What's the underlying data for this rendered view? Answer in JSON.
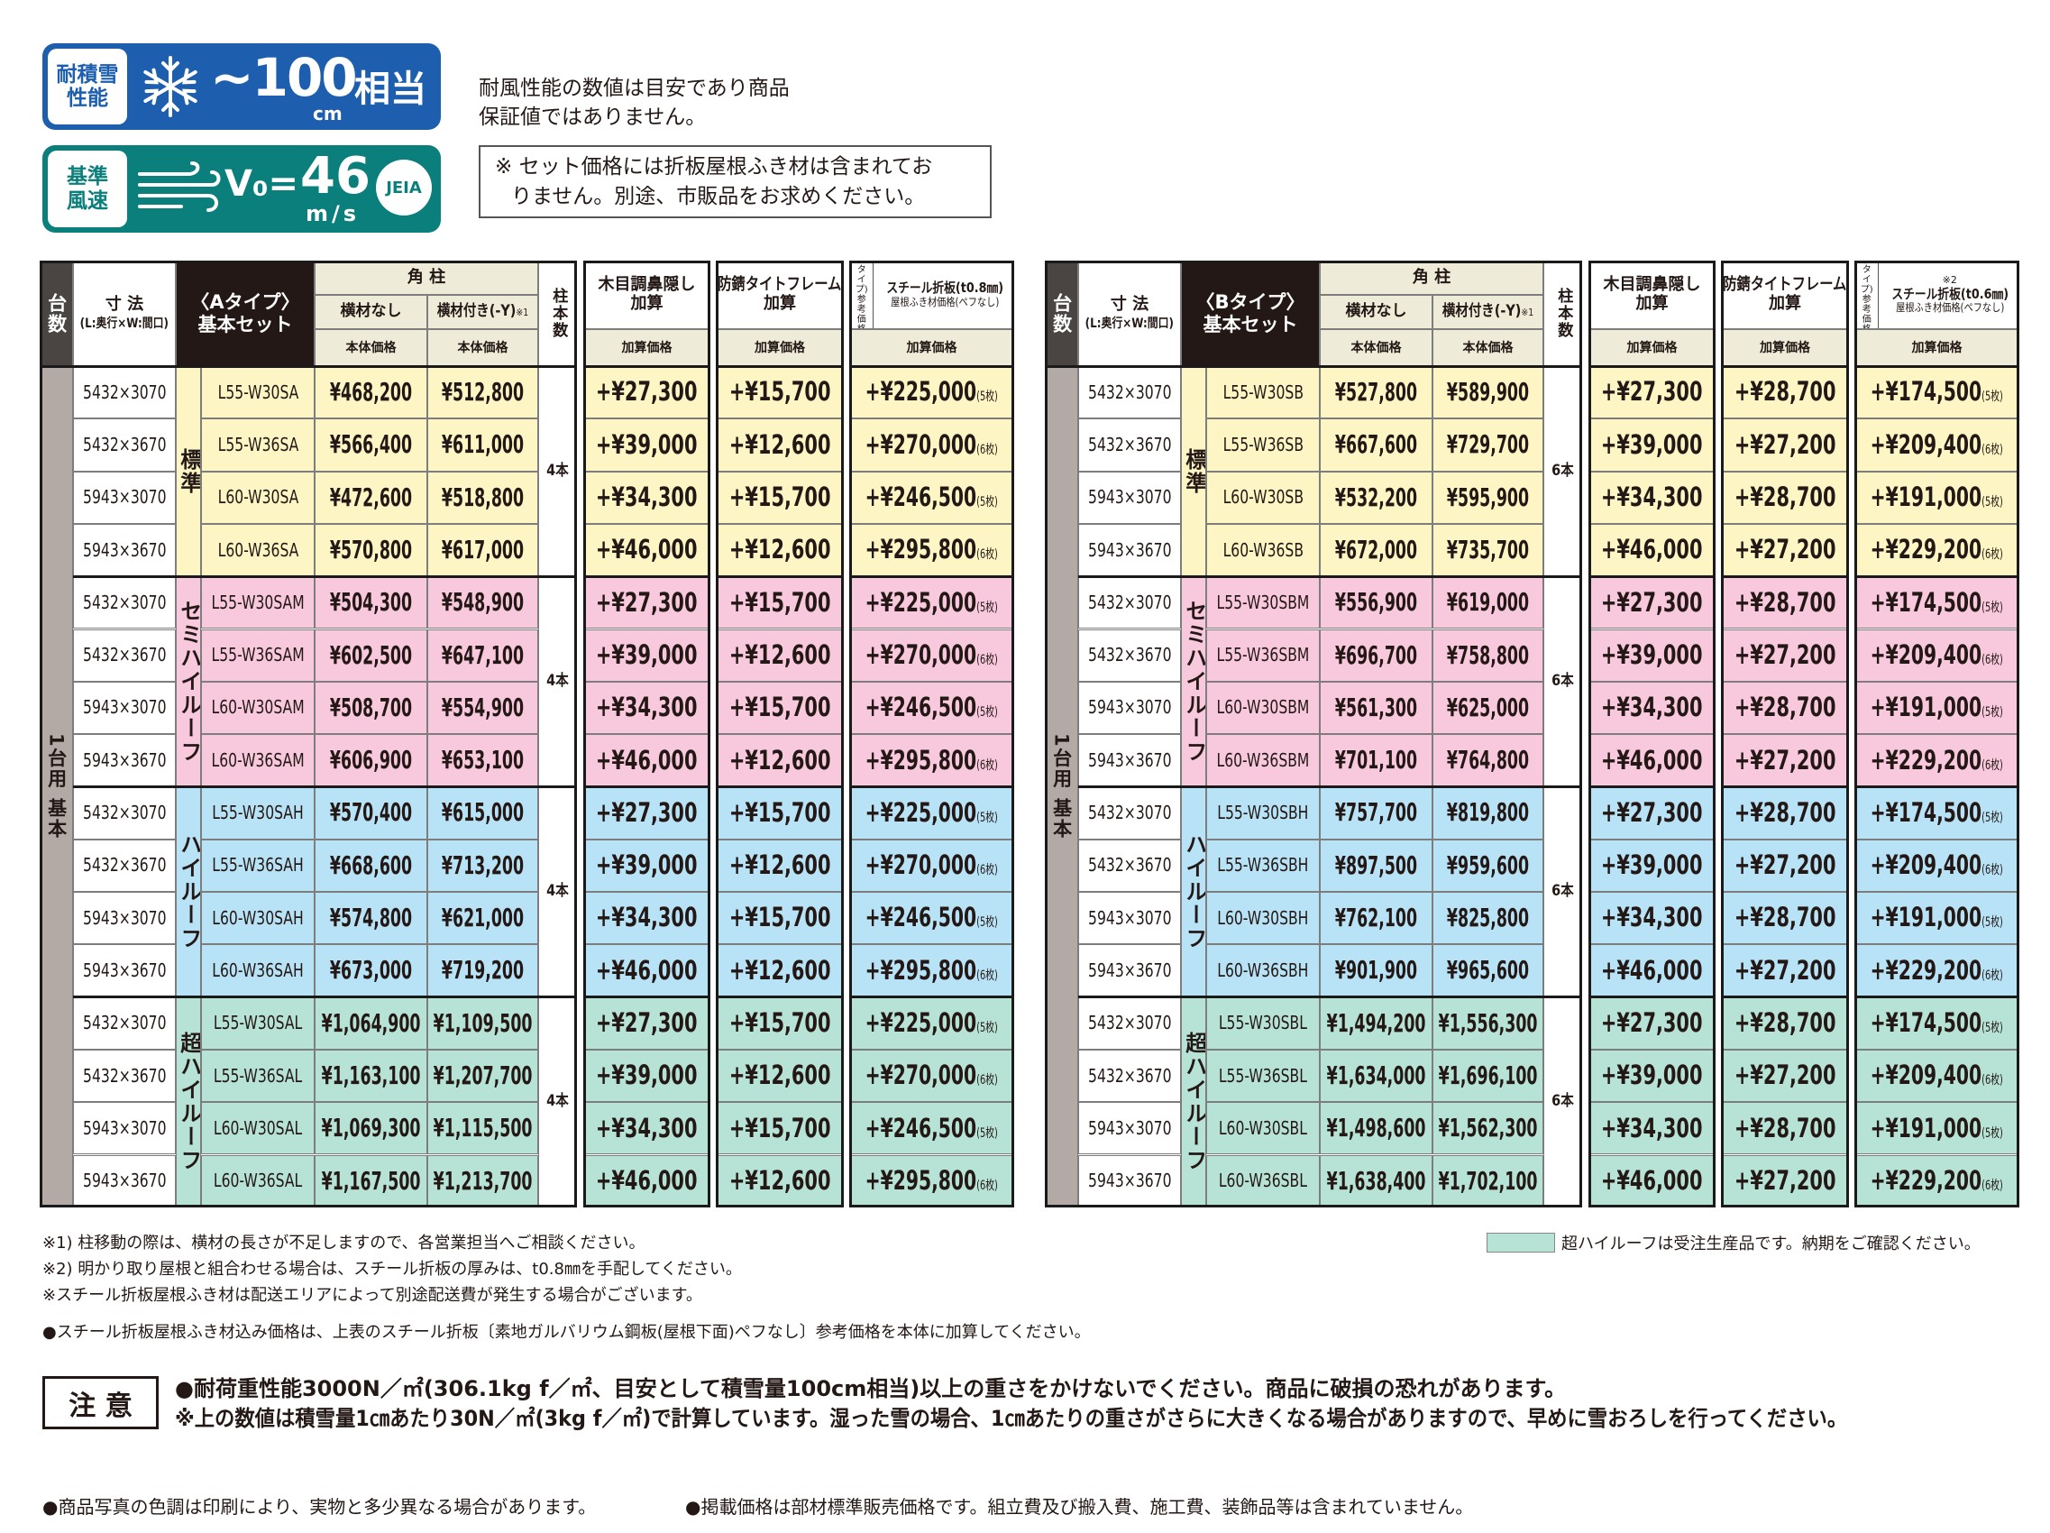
{
  "badges": {
    "snow": {
      "label": "耐積雪性能",
      "value": "~100",
      "unit": "cm",
      "suffix": "相当"
    },
    "wind": {
      "label": "基準風速",
      "prefix": "V₀=",
      "value": "46",
      "unit": "m/s",
      "mark": "JEIA"
    }
  },
  "notes_top": [
    "耐風性能の数値は目安であり商品",
    "保証値ではありません。"
  ],
  "notice_box": [
    "※ セット価格には折板屋根ふき材は含まれてお",
    "りません。別途、市販品をお求めください。"
  ],
  "tables": [
    {
      "header": {
        "count": "台数",
        "size": [
          "寸 法",
          "(L:奥行×W:間口)"
        ],
        "set": [
          "〈Aタイプ〉",
          "基本セット"
        ],
        "pillar": "角 柱",
        "no_beam": "横材なし",
        "beam": "横材付き(-Y)",
        "beam_note": "※1",
        "body_price": [
          "本体価格",
          "本体価格"
        ],
        "pillar_count": "柱本数",
        "wood": [
          "木目調鼻隠し",
          "加算"
        ],
        "frame": [
          "防錆タイトフレーム",
          "加算"
        ],
        "steel_type": [
          "(Aタイプ)",
          "参考価格"
        ],
        "steel": [
          "スチール折板(t0.8㎜)",
          "屋根ふき材価格(ペフなし)"
        ],
        "add_price": [
          "加算価格",
          "加算価格",
          "加算価格"
        ]
      },
      "side_label": "1台用 基本",
      "groups": [
        {
          "label": "標準",
          "color": "#fdf6c4",
          "pillars": "4本",
          "rows": [
            [
              "5432×3070",
              "L55-W30SA",
              "¥468,200",
              "¥512,800",
              "+¥27,300",
              "+¥15,700",
              "+¥225,000",
              "(5枚)"
            ],
            [
              "5432×3670",
              "L55-W36SA",
              "¥566,400",
              "¥611,000",
              "+¥39,000",
              "+¥12,600",
              "+¥270,000",
              "(6枚)"
            ],
            [
              "5943×3070",
              "L60-W30SA",
              "¥472,600",
              "¥518,800",
              "+¥34,300",
              "+¥15,700",
              "+¥246,500",
              "(5枚)"
            ],
            [
              "5943×3670",
              "L60-W36SA",
              "¥570,800",
              "¥617,000",
              "+¥46,000",
              "+¥12,600",
              "+¥295,800",
              "(6枚)"
            ]
          ]
        },
        {
          "label": "セミハイルーフ",
          "color": "#f8c8dc",
          "pillars": "4本",
          "rows": [
            [
              "5432×3070",
              "L55-W30SAM",
              "¥504,300",
              "¥548,900",
              "+¥27,300",
              "+¥15,700",
              "+¥225,000",
              "(5枚)"
            ],
            [
              "5432×3670",
              "L55-W36SAM",
              "¥602,500",
              "¥647,100",
              "+¥39,000",
              "+¥12,600",
              "+¥270,000",
              "(6枚)"
            ],
            [
              "5943×3070",
              "L60-W30SAM",
              "¥508,700",
              "¥554,900",
              "+¥34,300",
              "+¥15,700",
              "+¥246,500",
              "(5枚)"
            ],
            [
              "5943×3670",
              "L60-W36SAM",
              "¥606,900",
              "¥653,100",
              "+¥46,000",
              "+¥12,600",
              "+¥295,800",
              "(6枚)"
            ]
          ]
        },
        {
          "label": "ハイルーフ",
          "color": "#b8e3f6",
          "pillars": "4本",
          "rows": [
            [
              "5432×3070",
              "L55-W30SAH",
              "¥570,400",
              "¥615,000",
              "+¥27,300",
              "+¥15,700",
              "+¥225,000",
              "(5枚)"
            ],
            [
              "5432×3670",
              "L55-W36SAH",
              "¥668,600",
              "¥713,200",
              "+¥39,000",
              "+¥12,600",
              "+¥270,000",
              "(6枚)"
            ],
            [
              "5943×3070",
              "L60-W30SAH",
              "¥574,800",
              "¥621,000",
              "+¥34,300",
              "+¥15,700",
              "+¥246,500",
              "(5枚)"
            ],
            [
              "5943×3670",
              "L60-W36SAH",
              "¥673,000",
              "¥719,200",
              "+¥46,000",
              "+¥12,600",
              "+¥295,800",
              "(6枚)"
            ]
          ]
        },
        {
          "label": "超ハイルーフ",
          "color": "#b7e3d6",
          "pillars": "4本",
          "rows": [
            [
              "5432×3070",
              "L55-W30SAL",
              "¥1,064,900",
              "¥1,109,500",
              "+¥27,300",
              "+¥15,700",
              "+¥225,000",
              "(5枚)"
            ],
            [
              "5432×3670",
              "L55-W36SAL",
              "¥1,163,100",
              "¥1,207,700",
              "+¥39,000",
              "+¥12,600",
              "+¥270,000",
              "(6枚)"
            ],
            [
              "5943×3070",
              "L60-W30SAL",
              "¥1,069,300",
              "¥1,115,500",
              "+¥34,300",
              "+¥15,700",
              "+¥246,500",
              "(5枚)"
            ],
            [
              "5943×3670",
              "L60-W36SAL",
              "¥1,167,500",
              "¥1,213,700",
              "+¥46,000",
              "+¥12,600",
              "+¥295,800",
              "(6枚)"
            ]
          ]
        }
      ]
    },
    {
      "header": {
        "count": "台数",
        "size": [
          "寸 法",
          "(L:奥行×W:間口)"
        ],
        "set": [
          "〈Bタイプ〉",
          "基本セット"
        ],
        "pillar": "角 柱",
        "no_beam": "横材なし",
        "beam": "横材付き(-Y)",
        "beam_note": "※1",
        "body_price": [
          "本体価格",
          "本体価格"
        ],
        "pillar_count": "柱本数",
        "wood": [
          "木目調鼻隠し",
          "加算"
        ],
        "frame": [
          "防錆タイトフレーム",
          "加算"
        ],
        "steel_note": "※2",
        "steel_type": [
          "(Bタイプ)",
          "参考価格"
        ],
        "steel": [
          "スチール折板(t0.6㎜)",
          "屋根ふき材価格(ペフなし)"
        ],
        "add_price": [
          "加算価格",
          "加算価格",
          "加算価格"
        ]
      },
      "side_label": "1台用 基本",
      "groups": [
        {
          "label": "標準",
          "color": "#fdf6c4",
          "pillars": "6本",
          "rows": [
            [
              "5432×3070",
              "L55-W30SB",
              "¥527,800",
              "¥589,900",
              "+¥27,300",
              "+¥28,700",
              "+¥174,500",
              "(5枚)"
            ],
            [
              "5432×3670",
              "L55-W36SB",
              "¥667,600",
              "¥729,700",
              "+¥39,000",
              "+¥27,200",
              "+¥209,400",
              "(6枚)"
            ],
            [
              "5943×3070",
              "L60-W30SB",
              "¥532,200",
              "¥595,900",
              "+¥34,300",
              "+¥28,700",
              "+¥191,000",
              "(5枚)"
            ],
            [
              "5943×3670",
              "L60-W36SB",
              "¥672,000",
              "¥735,700",
              "+¥46,000",
              "+¥27,200",
              "+¥229,200",
              "(6枚)"
            ]
          ]
        },
        {
          "label": "セミハイルーフ",
          "color": "#f8c8dc",
          "pillars": "6本",
          "rows": [
            [
              "5432×3070",
              "L55-W30SBM",
              "¥556,900",
              "¥619,000",
              "+¥27,300",
              "+¥28,700",
              "+¥174,500",
              "(5枚)"
            ],
            [
              "5432×3670",
              "L55-W36SBM",
              "¥696,700",
              "¥758,800",
              "+¥39,000",
              "+¥27,200",
              "+¥209,400",
              "(6枚)"
            ],
            [
              "5943×3070",
              "L60-W30SBM",
              "¥561,300",
              "¥625,000",
              "+¥34,300",
              "+¥28,700",
              "+¥191,000",
              "(5枚)"
            ],
            [
              "5943×3670",
              "L60-W36SBM",
              "¥701,100",
              "¥764,800",
              "+¥46,000",
              "+¥27,200",
              "+¥229,200",
              "(6枚)"
            ]
          ]
        },
        {
          "label": "ハイルーフ",
          "color": "#b8e3f6",
          "pillars": "6本",
          "rows": [
            [
              "5432×3070",
              "L55-W30SBH",
              "¥757,700",
              "¥819,800",
              "+¥27,300",
              "+¥28,700",
              "+¥174,500",
              "(5枚)"
            ],
            [
              "5432×3670",
              "L55-W36SBH",
              "¥897,500",
              "¥959,600",
              "+¥39,000",
              "+¥27,200",
              "+¥209,400",
              "(6枚)"
            ],
            [
              "5943×3070",
              "L60-W30SBH",
              "¥762,100",
              "¥825,800",
              "+¥34,300",
              "+¥28,700",
              "+¥191,000",
              "(5枚)"
            ],
            [
              "5943×3670",
              "L60-W36SBH",
              "¥901,900",
              "¥965,600",
              "+¥46,000",
              "+¥27,200",
              "+¥229,200",
              "(6枚)"
            ]
          ]
        },
        {
          "label": "超ハイルーフ",
          "color": "#b7e3d6",
          "pillars": "6本",
          "rows": [
            [
              "5432×3070",
              "L55-W30SBL",
              "¥1,494,200",
              "¥1,556,300",
              "+¥27,300",
              "+¥28,700",
              "+¥174,500",
              "(5枚)"
            ],
            [
              "5432×3670",
              "L55-W36SBL",
              "¥1,634,000",
              "¥1,696,100",
              "+¥39,000",
              "+¥27,200",
              "+¥209,400",
              "(6枚)"
            ],
            [
              "5943×3070",
              "L60-W30SBL",
              "¥1,498,600",
              "¥1,562,300",
              "+¥34,300",
              "+¥28,700",
              "+¥191,000",
              "(5枚)"
            ],
            [
              "5943×3670",
              "L60-W36SBL",
              "¥1,638,400",
              "¥1,702,100",
              "+¥46,000",
              "+¥27,200",
              "+¥229,200",
              "(6枚)"
            ]
          ]
        }
      ]
    }
  ],
  "footnotes": [
    "※1) 柱移動の際は、横材の長さが不足しますので、各営業担当へご相談ください。",
    "※2) 明かり取り屋根と組合わせる場合は、スチール折板の厚みは、t0.8㎜を手配してください。",
    "※スチール折板屋根ふき材は配送エリアによって別途配送費が発生する場合がございます。",
    "●スチール折板屋根ふき材込み価格は、上表のスチール折板〔素地ガルバリウム鋼板(屋根下面)ペフなし〕参考価格を本体に加算してください。"
  ],
  "legend": "超ハイルーフは受注生産品です。納期をご確認ください。",
  "caution": {
    "title": "注 意",
    "lines": [
      "●耐荷重性能3000N／㎡(306.1kg f／㎡、目安として積雪量100cm相当)以上の重さをかけないでください。商品に破損の恐れがあります。",
      "※上の数値は積雪量1㎝あたり30N／㎡(3kg f／㎡)で計算しています。湿った雪の場合、1㎝あたりの重さがさらに大きくなる場合がありますので、早めに雪おろしを行ってください。"
    ]
  },
  "bottom_notes": [
    "●商品写真の色調は印刷により、実物と多少異なる場合があります。",
    "●掲載価格は部材標準販売価格です。組立費及び搬入費、施工費、装飾品等は含まれていません。"
  ]
}
